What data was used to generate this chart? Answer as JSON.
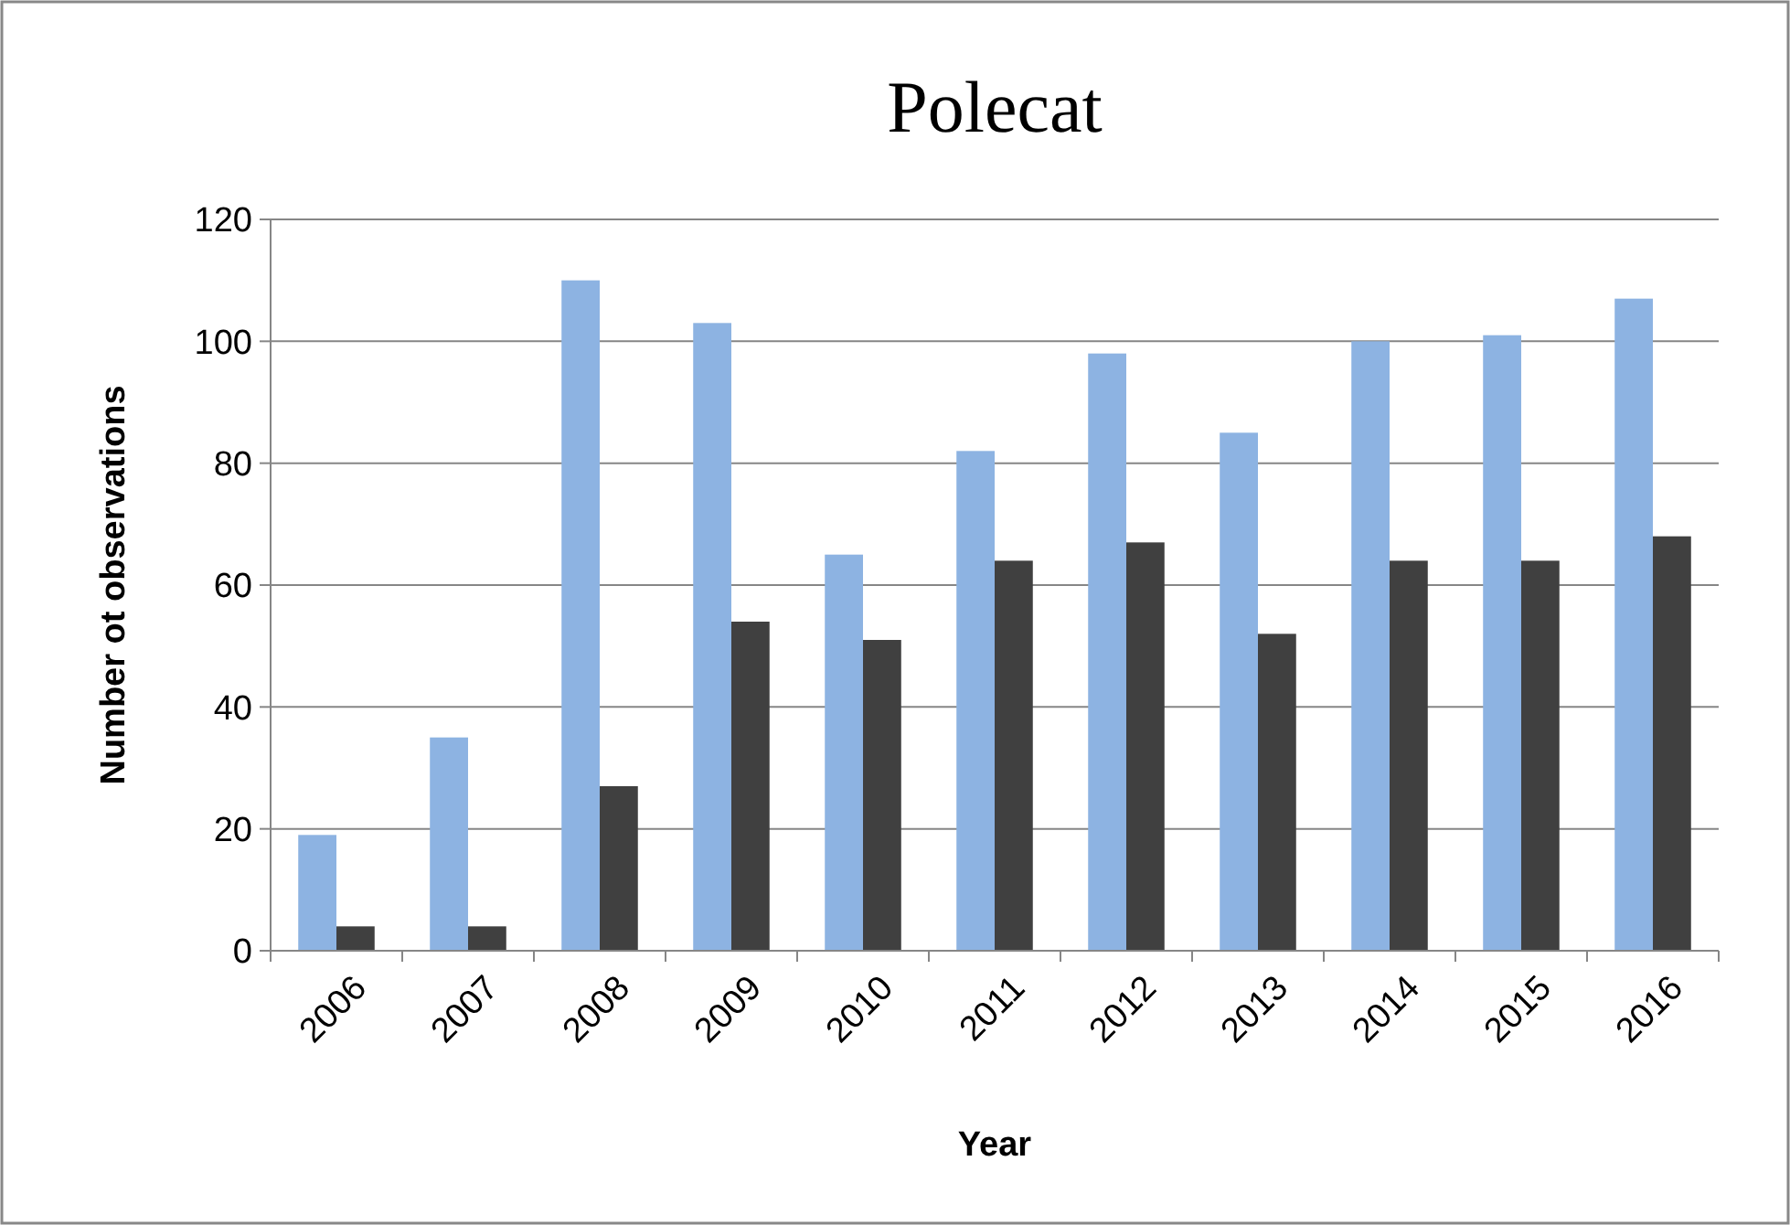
{
  "chart_data": {
    "type": "bar",
    "title": "Polecat",
    "xlabel": "Year",
    "ylabel": "Number ot observations",
    "categories": [
      "2006",
      "2007",
      "2008",
      "2009",
      "2010",
      "2011",
      "2012",
      "2013",
      "2014",
      "2015",
      "2016"
    ],
    "series": [
      {
        "color": "#8db3e2",
        "values": [
          19,
          35,
          110,
          103,
          65,
          82,
          98,
          85,
          100,
          101,
          107
        ]
      },
      {
        "color": "#404040",
        "values": [
          4,
          4,
          27,
          54,
          51,
          64,
          67,
          52,
          64,
          64,
          68
        ]
      }
    ],
    "ylim": [
      0,
      120
    ],
    "yticks": [
      0,
      20,
      40,
      60,
      80,
      100,
      120
    ],
    "grid": "y"
  }
}
